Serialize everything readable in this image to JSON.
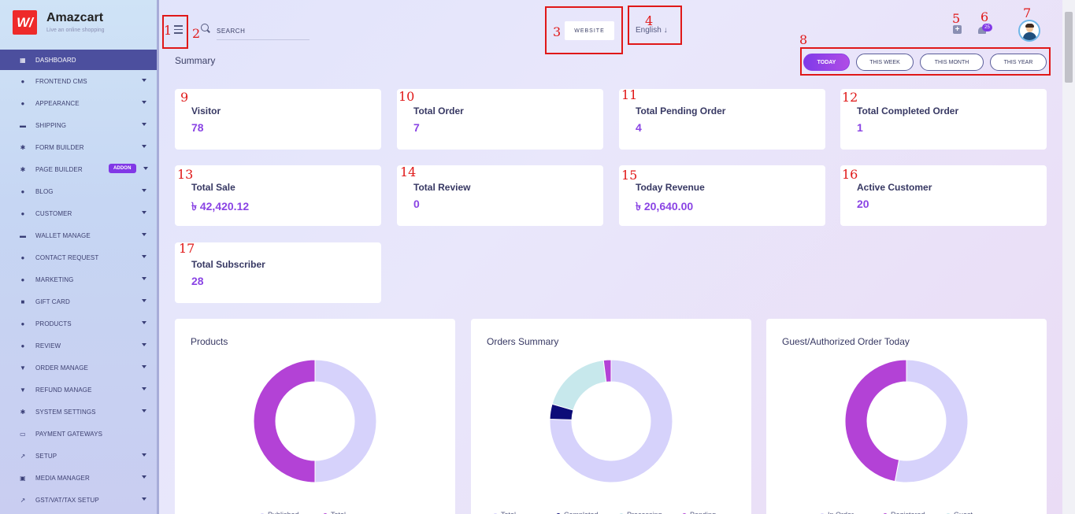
{
  "brand": {
    "name": "Amazcart",
    "tagline": "Live an online shopping",
    "logo_text": "W/"
  },
  "sidebar": {
    "items": [
      {
        "label": "Dashboard",
        "icon": "grid-icon",
        "glyph": "▦",
        "active": true,
        "caret": false
      },
      {
        "label": "Frontend CMS",
        "icon": "user-icon",
        "glyph": "●",
        "caret": true
      },
      {
        "label": "Appearance",
        "icon": "user-icon",
        "glyph": "●",
        "caret": true
      },
      {
        "label": "Shipping",
        "icon": "truck-icon",
        "glyph": "▬",
        "caret": true
      },
      {
        "label": "Form Builder",
        "icon": "cogs-icon",
        "glyph": "✱",
        "caret": true
      },
      {
        "label": "Page Builder",
        "icon": "cogs-icon",
        "glyph": "✱",
        "caret": true,
        "badge": "ADDON"
      },
      {
        "label": "Blog",
        "icon": "users-icon",
        "glyph": "●",
        "caret": true
      },
      {
        "label": "Customer",
        "icon": "users-icon",
        "glyph": "●",
        "caret": true
      },
      {
        "label": "Wallet Manage",
        "icon": "wallet-icon",
        "glyph": "▬",
        "caret": true
      },
      {
        "label": "Contact Request",
        "icon": "user-icon",
        "glyph": "●",
        "caret": true
      },
      {
        "label": "Marketing",
        "icon": "user-icon",
        "glyph": "●",
        "caret": true
      },
      {
        "label": "Gift Card",
        "icon": "gift-icon",
        "glyph": "■",
        "caret": true
      },
      {
        "label": "Products",
        "icon": "product-icon",
        "glyph": "●",
        "caret": true
      },
      {
        "label": "Review",
        "icon": "user-icon",
        "glyph": "●",
        "caret": true
      },
      {
        "label": "Order Manage",
        "icon": "cart-icon",
        "glyph": "▼",
        "caret": true
      },
      {
        "label": "Refund Manage",
        "icon": "cart-icon",
        "glyph": "▼",
        "caret": true
      },
      {
        "label": "System Settings",
        "icon": "gear-icon",
        "glyph": "✱",
        "caret": true
      },
      {
        "label": "Payment Gateways",
        "icon": "card-icon",
        "glyph": "▭",
        "caret": false
      },
      {
        "label": "Setup",
        "icon": "wrench-icon",
        "glyph": "↗",
        "caret": true
      },
      {
        "label": "Media Manager",
        "icon": "image-icon",
        "glyph": "▣",
        "caret": true
      },
      {
        "label": "GST/VAT/TAX Setup",
        "icon": "wrench-icon",
        "glyph": "↗",
        "caret": true
      }
    ]
  },
  "header": {
    "search_placeholder": "SEARCH",
    "website_label": "WEBSITE",
    "language": "English",
    "notification_count": "25"
  },
  "summary": {
    "title": "Summary",
    "periods": [
      "Today",
      "This Week",
      "This Month",
      "This Year"
    ],
    "active_period": "Today"
  },
  "cards": [
    {
      "title": "Visitor",
      "value": "78"
    },
    {
      "title": "Total Order",
      "value": "7"
    },
    {
      "title": "Total Pending Order",
      "value": "4"
    },
    {
      "title": "Total Completed Order",
      "value": "1"
    },
    {
      "title": "Total Sale",
      "value": "৳ 42,420.12"
    },
    {
      "title": "Total Review",
      "value": "0"
    },
    {
      "title": "Today Revenue",
      "value": "৳ 20,640.00"
    },
    {
      "title": "Active Customer",
      "value": "20"
    },
    {
      "title": "Total Subscriber",
      "value": "28"
    }
  ],
  "annotations": [
    "1",
    "2",
    "3",
    "4",
    "5",
    "6",
    "7",
    "8",
    "9",
    "10",
    "11",
    "12",
    "13",
    "14",
    "15",
    "16",
    "17"
  ],
  "charts": [
    {
      "title": "Products"
    },
    {
      "title": "Orders Summary"
    },
    {
      "title": "Guest/Authorized Order Today"
    }
  ],
  "chart_data": [
    {
      "type": "pie",
      "title": "Products",
      "series": [
        {
          "name": "Published",
          "value": 50,
          "color": "#d6d2fb"
        },
        {
          "name": "Total",
          "value": 50,
          "color": "#b342d6"
        }
      ]
    },
    {
      "type": "pie",
      "title": "Orders Summary",
      "series": [
        {
          "name": "Total",
          "value": 75.5,
          "color": "#d6d2fb"
        },
        {
          "name": "Completed",
          "value": 4,
          "color": "#0d0d78"
        },
        {
          "name": "Processing",
          "value": 18.5,
          "color": "#c7e8ec"
        },
        {
          "name": "Pending",
          "value": 2,
          "color": "#b342d6"
        }
      ]
    },
    {
      "type": "pie",
      "title": "Guest/Authorized Order Today",
      "series": [
        {
          "name": "In Order",
          "value": 53,
          "color": "#d6d2fb"
        },
        {
          "name": "Registered",
          "value": 47,
          "color": "#b342d6"
        },
        {
          "name": "Guest",
          "value": 0,
          "color": "#c7e8ec"
        }
      ]
    }
  ]
}
